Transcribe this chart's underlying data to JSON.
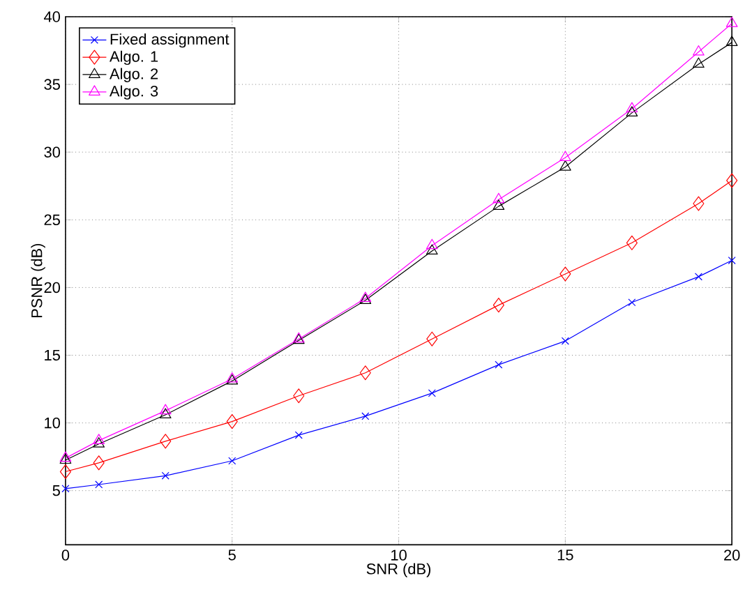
{
  "chart_data": {
    "type": "line",
    "xlabel": "SNR (dB)",
    "ylabel": "PSNR (dB)",
    "xlim": [
      0,
      20
    ],
    "ylim": [
      1,
      40
    ],
    "xticks": [
      0,
      5,
      10,
      15,
      20
    ],
    "yticks": [
      5,
      10,
      15,
      20,
      25,
      30,
      35,
      40
    ],
    "grid": true,
    "legend": "top left",
    "line_style": "solid",
    "series": [
      {
        "name": "Fixed assignment",
        "color": "#0000ff",
        "marker": "cross",
        "x": [
          0,
          1,
          3,
          5,
          7,
          9,
          11,
          13,
          15,
          17,
          19,
          20
        ],
        "values": [
          5.15,
          5.45,
          6.1,
          7.2,
          9.1,
          10.5,
          12.2,
          14.3,
          16.05,
          18.9,
          20.8,
          22.0
        ]
      },
      {
        "name": "Algo. 1",
        "color": "#ff0000",
        "marker": "diamond",
        "x": [
          0,
          1,
          3,
          5,
          7,
          9,
          11,
          13,
          15,
          17,
          19,
          20
        ],
        "values": [
          6.4,
          7.05,
          8.65,
          10.1,
          12.0,
          13.7,
          16.2,
          18.7,
          21.0,
          23.3,
          26.2,
          27.9
        ]
      },
      {
        "name": "Algo. 2",
        "color": "#000000",
        "marker": "triangle-right",
        "x": [
          0,
          1,
          3,
          5,
          7,
          9,
          11,
          13,
          15,
          17,
          19,
          20
        ],
        "values": [
          7.25,
          8.45,
          10.6,
          13.1,
          16.1,
          19.05,
          22.7,
          26.0,
          28.9,
          32.9,
          36.5,
          38.1
        ]
      },
      {
        "name": "Algo. 3",
        "color": "#ff00ff",
        "marker": "triangle-left",
        "x": [
          0,
          1,
          3,
          5,
          7,
          9,
          11,
          13,
          15,
          17,
          19,
          20
        ],
        "values": [
          7.4,
          8.7,
          10.9,
          13.25,
          16.2,
          19.2,
          23.1,
          26.5,
          29.6,
          33.2,
          37.4,
          39.5
        ]
      }
    ]
  }
}
